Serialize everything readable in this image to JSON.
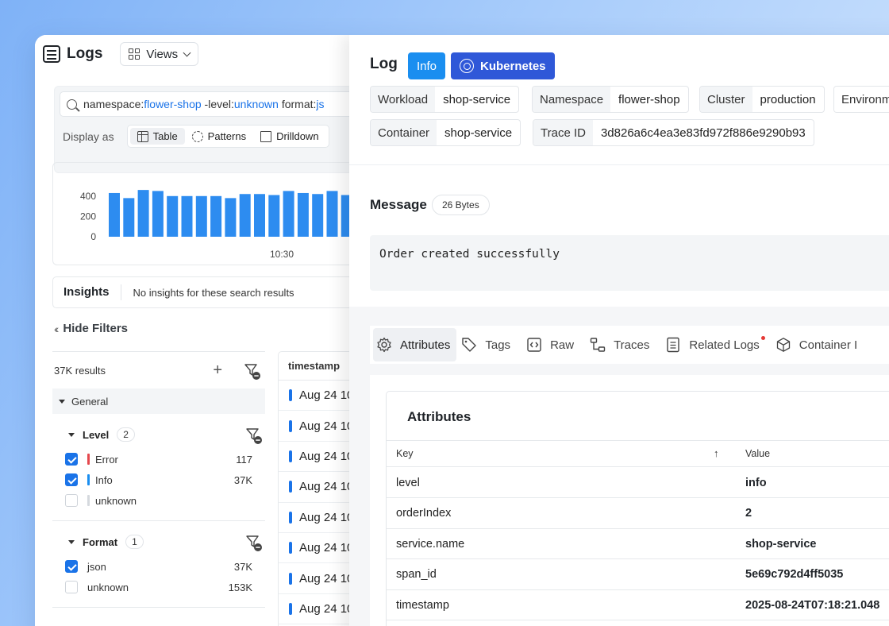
{
  "app": {
    "title": "Logs",
    "views_label": "Views"
  },
  "search": {
    "tokens": [
      {
        "k": "namespace:",
        "v": "flower-shop"
      },
      {
        "k": " -level:",
        "v": "unknown"
      },
      {
        "k": " format:",
        "v": "js"
      }
    ],
    "display_as_label": "Display as",
    "modes": [
      "Table",
      "Patterns",
      "Drilldown"
    ]
  },
  "histogram": {
    "y_ticks": [
      "400",
      "200",
      "0"
    ],
    "x_label": "10:30",
    "values": [
      430,
      380,
      460,
      450,
      400,
      400,
      400,
      400,
      380,
      420,
      420,
      410,
      450,
      430,
      420,
      450,
      410
    ],
    "ymax": 500,
    "bar_color": "#2d8cf0"
  },
  "insights": {
    "title": "Insights",
    "message": "No insights for these search results"
  },
  "filters": {
    "hide_label": "Hide Filters",
    "results": "37K results",
    "group": "General",
    "level": {
      "title": "Level",
      "count": "2",
      "items": [
        {
          "label": "Error",
          "value": "117",
          "checked": true,
          "color": "#e5484d"
        },
        {
          "label": "Info",
          "value": "37K",
          "checked": true,
          "color": "#1a8ef0"
        },
        {
          "label": "unknown",
          "value": "",
          "checked": false,
          "color": "#d5d9de"
        }
      ]
    },
    "format": {
      "title": "Format",
      "count": "1",
      "items": [
        {
          "label": "json",
          "value": "37K",
          "checked": true
        },
        {
          "label": "unknown",
          "value": "153K",
          "checked": false
        }
      ]
    }
  },
  "log_table": {
    "header": "timestamp",
    "rows": [
      "Aug 24 10",
      "Aug 24 10",
      "Aug 24 10",
      "Aug 24 10",
      "Aug 24 10",
      "Aug 24 10",
      "Aug 24 10",
      "Aug 24 10"
    ]
  },
  "detail": {
    "title": "Log",
    "level_badge": "Info",
    "source_badge": "Kubernetes",
    "tags": [
      {
        "k": "Workload",
        "v": "shop-service"
      },
      {
        "k": "Namespace",
        "v": "flower-shop"
      },
      {
        "k": "Cluster",
        "v": "production"
      },
      {
        "k": "Environm",
        "v": ""
      },
      {
        "k": "Container",
        "v": "shop-service"
      },
      {
        "k": "Trace ID",
        "v": "3d826a6c4ea3e83fd972f886e9290b93"
      }
    ],
    "message_title": "Message",
    "message_size": "26 Bytes",
    "message_text": "Order created successfully",
    "tabs": [
      "Attributes",
      "Tags",
      "Raw",
      "Traces",
      "Related Logs",
      "Container I"
    ],
    "attributes": {
      "title": "Attributes",
      "key_header": "Key",
      "sort_arrow": "↑",
      "value_header": "Value",
      "rows": [
        {
          "k": "level",
          "v": "info"
        },
        {
          "k": "orderIndex",
          "v": "2"
        },
        {
          "k": "service.name",
          "v": "shop-service"
        },
        {
          "k": "span_id",
          "v": "5e69c792d4ff5035"
        },
        {
          "k": "timestamp",
          "v": "2025-08-24T07:18:21.048"
        }
      ]
    }
  }
}
